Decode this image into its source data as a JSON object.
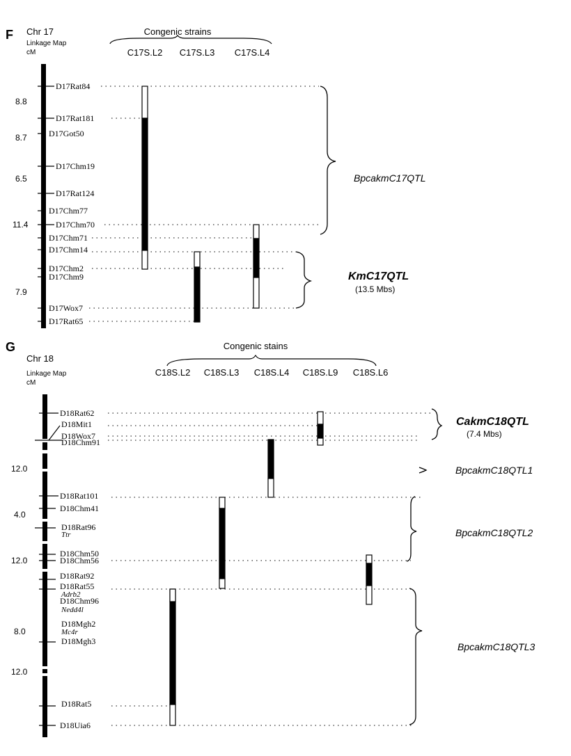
{
  "panels": [
    {
      "panel_letter": "F",
      "chromosome": "Chr 17",
      "linkage_label_line1": "Linkage Map",
      "linkage_label_line2": "cM",
      "congenic_header": "Congenic strains",
      "strains": [
        "C17S.L2",
        "C17S.L3",
        "C17S.L4"
      ],
      "markers": [
        "D17Rat84",
        "D17Rat181",
        "D17Got50",
        "D17Chm19",
        "D17Rat124",
        "D17Chm77",
        "D17Chm70",
        "D17Chm71",
        "D17Chm14",
        "D17Chm2",
        "D17Chm9",
        "D17Wox7",
        "D17Rat65"
      ],
      "distances_cM": [
        "8.8",
        "8.7",
        "6.5",
        "11.4",
        "7.9"
      ],
      "qtls": [
        {
          "name": "BpcakmC17QTL",
          "size": ""
        },
        {
          "name": "KmC17QTL",
          "size": "(13.5 Mbs)"
        }
      ]
    },
    {
      "panel_letter": "G",
      "chromosome": "Chr 18",
      "linkage_label_line1": "Linkage Map",
      "linkage_label_line2": "cM",
      "congenic_header": "Congenic stains",
      "strains": [
        "C18S.L2",
        "C18S.L3",
        "C18S.L4",
        "C18S.L9",
        "C18S.L6"
      ],
      "markers": [
        "D18Rat62",
        "D18Mit1",
        "D18Wox7",
        "D18Chm91",
        "D18Rat101",
        "D18Chm41",
        "D18Rat96",
        "Ttr",
        "D18Chm50",
        "D18Chm56",
        "D18Rat92",
        "D18Rat55",
        "Adrb2",
        "D18Chm96",
        "Nedd4l",
        "D18Mgh2",
        "Mc4r",
        "D18Mgh3",
        "D18Rat5",
        "D18Uia6"
      ],
      "distances_cM": [
        "12.0",
        "4.0",
        "12.0",
        "8.0",
        "12.0"
      ],
      "qtls": [
        {
          "name": "CakmC18QTL",
          "size": "(7.4 Mbs)"
        },
        {
          "name": "BpcakmC18QTL1",
          "size": ""
        },
        {
          "name": "BpcakmC18QTL2",
          "size": ""
        },
        {
          "name": "BpcakmC18QTL3",
          "size": ""
        }
      ]
    }
  ]
}
